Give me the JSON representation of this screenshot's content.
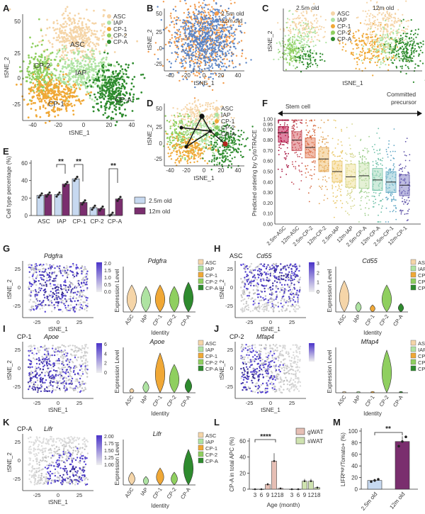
{
  "figure": {
    "panel_letters": [
      "A",
      "B",
      "C",
      "D",
      "E",
      "F",
      "G",
      "H",
      "I",
      "J",
      "K",
      "L",
      "M"
    ],
    "colors": {
      "ASC": "#f5d5a8",
      "IAP": "#aee3a2",
      "CP-1": "#f0a836",
      "CP-2": "#8fcf5f",
      "CP-A": "#2e8b2e",
      "old_2_5m": "#f39a4a",
      "old_12m": "#5b85c6",
      "bar_2_5m": "#c7d9f0",
      "bar_12m": "#7a2e6e",
      "feature_high": "#4a33c9",
      "feature_low": "#d8d8d8",
      "box_2_5m": "#c82a5a",
      "box_12m": "#e8a7a0"
    },
    "tsne": {
      "x_axis_label": "tSNE_1",
      "y_axis_label": "tSNE_2",
      "x_ticks_full": [
        "-40",
        "-20",
        "0",
        "20",
        "40"
      ],
      "y_ticks_full": [
        "50",
        "25",
        "0",
        "-25"
      ],
      "x_ticks_small": [
        "-25",
        "0",
        "25"
      ],
      "y_ticks_small": [
        "25",
        "0",
        "-25"
      ],
      "cluster_legend": [
        "ASC",
        "IAP",
        "CP-1",
        "CP-2",
        "CP-A"
      ],
      "age_legend": [
        "2.5m old",
        "12m old"
      ]
    },
    "panel_a": {
      "cluster_labels": [
        "ASC",
        "IAP",
        "CP-2",
        "CP-1",
        "CP-A"
      ]
    },
    "panel_c": {
      "titles": [
        "2.5m old",
        "12m old"
      ]
    },
    "panel_e": {
      "ylabel": "Cell type percentage (%)",
      "yticks": [
        "60",
        "40",
        "20",
        "0"
      ],
      "significance": [
        "**",
        "**",
        "**"
      ],
      "legend": [
        "2.5m old",
        "12m old"
      ]
    },
    "panel_f": {
      "stem_label": "Stem cell",
      "committed_label": "Committed\nprecursor",
      "ylabel": "Predicted ordering by CytoTRACE",
      "yticks": [
        "1.00",
        "0.95",
        "0.90",
        "0.80",
        "0.70",
        "0.60",
        "0.50",
        "0.40",
        "0.30",
        "0.20",
        "0.10",
        "0.00"
      ]
    },
    "feature_panels": {
      "g": {
        "corner": "",
        "gene": "Pdgfra",
        "scale": [
          "2.0",
          "1.5",
          "1.0",
          "0.5",
          "0.0"
        ]
      },
      "h": {
        "corner": "ASC",
        "gene": "Cd55",
        "scale": [
          "3",
          "2",
          "1",
          "0"
        ]
      },
      "i": {
        "corner": "CP-1",
        "gene": "Apoe",
        "scale": [
          "6",
          "4",
          "2",
          "0"
        ]
      },
      "j": {
        "corner": "CP-2",
        "gene": "Mfap4",
        "scale": []
      },
      "k": {
        "corner": "CP-A",
        "gene": "Lifr",
        "scale": [
          "2.00",
          "1.75",
          "1.50",
          "1.25",
          "1.00"
        ]
      },
      "violin_ylabel": "Expression Level",
      "violin_xlabel": "Identity",
      "violin_categories": [
        "ASC",
        "IAP",
        "CP-1",
        "CP-2",
        "CP-A"
      ]
    },
    "panel_l": {
      "ylabel": "CP-A in total APC (%)",
      "xlabel": "Age (month)",
      "yticks": [
        "60",
        "40",
        "20",
        "0"
      ],
      "significance": "****",
      "legend": [
        "gWAT",
        "sWAT"
      ]
    },
    "panel_m": {
      "ylabel": "LIFRᴴᶦᵍʰ/Tomato+ (%)",
      "yticks": [
        "100",
        "80",
        "60",
        "40",
        "20",
        "0"
      ],
      "significance": "**",
      "categories": [
        "2.5m old",
        "12m old"
      ]
    }
  },
  "chart_data": [
    {
      "type": "bar",
      "title": "E",
      "ylabel": "Cell type percentage (%)",
      "ylim": [
        0,
        60
      ],
      "categories": [
        "ASC",
        "IAP",
        "CP-1",
        "CP-2",
        "CP-A"
      ],
      "series": [
        {
          "name": "2.5m old",
          "values": [
            23,
            24,
            42,
            9,
            1
          ]
        },
        {
          "name": "12m old",
          "values": [
            24,
            36,
            15,
            8,
            19
          ]
        }
      ]
    },
    {
      "type": "scatter",
      "title": "F",
      "ylabel": "Predicted ordering by CytoTRACE",
      "ylim": [
        0,
        1
      ],
      "categories": [
        "2.5m-ASC",
        "12m-ASC",
        "2.5m-CP-2",
        "12m-CP-2",
        "2.5m-IAP",
        "12m-IAP",
        "2.5m-CP-A",
        "12m-CP-A",
        "2.5m-CP-1",
        "12m-CP-1"
      ],
      "medians": [
        0.87,
        0.8,
        0.73,
        0.62,
        0.5,
        0.45,
        0.46,
        0.42,
        0.4,
        0.37
      ],
      "q1": [
        0.78,
        0.7,
        0.63,
        0.5,
        0.4,
        0.35,
        0.34,
        0.32,
        0.3,
        0.27
      ],
      "q3": [
        0.93,
        0.88,
        0.82,
        0.73,
        0.6,
        0.57,
        0.58,
        0.53,
        0.5,
        0.47
      ]
    },
    {
      "type": "bar",
      "title": "L",
      "xlabel": "Age (month)",
      "ylabel": "CP-A in total APC (%)",
      "ylim": [
        0,
        60
      ],
      "series": [
        {
          "name": "gWAT",
          "x": [
            3,
            6,
            9,
            12,
            18
          ],
          "values": [
            0,
            0,
            6,
            35,
            1
          ]
        },
        {
          "name": "sWAT",
          "x": [
            3,
            6,
            9,
            12,
            18
          ],
          "values": [
            0,
            0,
            10,
            10,
            2
          ]
        }
      ]
    },
    {
      "type": "bar",
      "title": "M",
      "ylabel": "LIFR high / Tomato+ (%)",
      "ylim": [
        0,
        100
      ],
      "categories": [
        "2.5m old",
        "12m old"
      ],
      "values": [
        15,
        82
      ]
    }
  ]
}
